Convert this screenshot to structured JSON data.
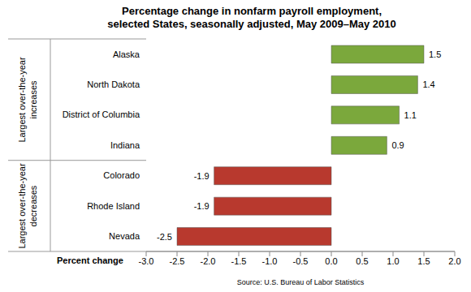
{
  "chart_data": {
    "type": "bar",
    "orientation": "horizontal",
    "title": "Percentage change in nonfarm payroll employment,",
    "subtitle": "selected States, seasonally adjusted, May 2009–May 2010",
    "x_label": "Percent change",
    "source": "Source: U.S. Bureau of Labor Statistics",
    "categories": [
      "Alaska",
      "North Dakota",
      "District of Columbia",
      "Indiana",
      "Colorado",
      "Rhode Island",
      "Nevada"
    ],
    "values": [
      1.5,
      1.4,
      1.1,
      0.9,
      -1.9,
      -1.9,
      -2.5
    ],
    "colors": [
      "#7ba83c",
      "#7ba83c",
      "#7ba83c",
      "#7ba83c",
      "#b8392e",
      "#b8392e",
      "#b8392e"
    ],
    "groups": [
      {
        "label": "Largest over-the-year increases",
        "members": [
          "Alaska",
          "North Dakota",
          "District of Columbia",
          "Indiana"
        ]
      },
      {
        "label": "Largest over-the-year decreases",
        "members": [
          "Colorado",
          "Rhode Island",
          "Nevada"
        ]
      }
    ],
    "xlim": [
      -3,
      2
    ],
    "xticks": [
      {
        "value": -3,
        "label": "-3.0"
      },
      {
        "value": -2.5,
        "label": "-2.5"
      },
      {
        "value": -2,
        "label": "-2.0"
      },
      {
        "value": -1.5,
        "label": "-1.5"
      },
      {
        "value": -1,
        "label": "-1.0"
      },
      {
        "value": -0.5,
        "label": "-0.5"
      },
      {
        "value": 0,
        "label": "0.0"
      },
      {
        "value": 0.5,
        "label": "0.5"
      },
      {
        "value": 1,
        "label": "1.0"
      },
      {
        "value": 1.5,
        "label": "1.5"
      },
      {
        "value": 2,
        "label": "2.0"
      }
    ],
    "grid": false,
    "data_labels": true
  }
}
